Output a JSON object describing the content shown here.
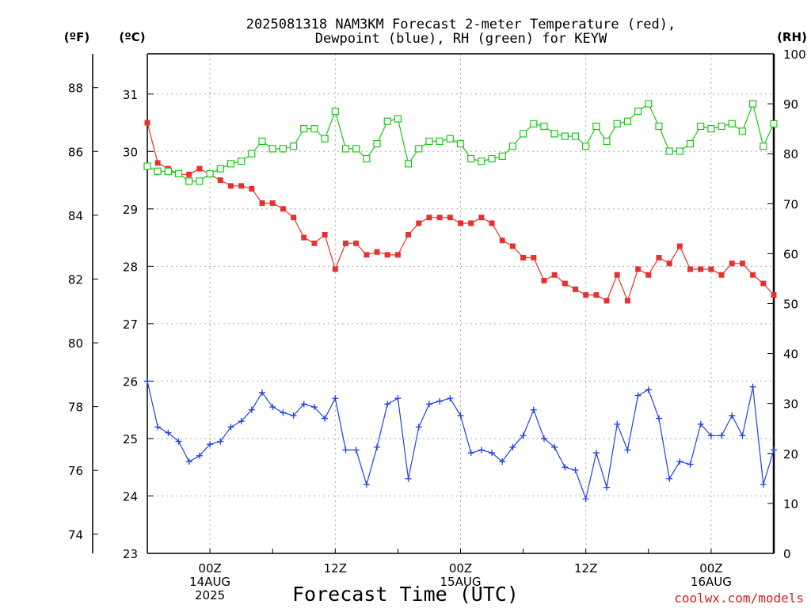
{
  "title_line1": "2025081318 NAM3KM Forecast 2-meter Temperature (red),",
  "title_line2": "Dewpoint (blue), RH (green) for KEYW",
  "units": {
    "f": "(ºF)",
    "c": "(ºC)",
    "rh": "(RH)"
  },
  "xlabel": "Forecast Time (UTC)",
  "credit": "coolwx.com/models",
  "colors": {
    "temp": "#e83030",
    "dewpoint": "#2040e8",
    "rh": "#18c818"
  },
  "chart_data": {
    "type": "line",
    "x_start_hour": -6,
    "x_step_hours": 1,
    "x_end_hour": 54,
    "xlim": [
      -6,
      54
    ],
    "x_ticks": [
      {
        "hour": 0,
        "lines": [
          "00Z",
          "14AUG",
          "2025"
        ]
      },
      {
        "hour": 12,
        "lines": [
          "12Z"
        ]
      },
      {
        "hour": 24,
        "lines": [
          "00Z",
          "15AUG"
        ]
      },
      {
        "hour": 36,
        "lines": [
          "12Z"
        ]
      },
      {
        "hour": 48,
        "lines": [
          "00Z",
          "16AUG"
        ]
      }
    ],
    "ylim_c": [
      23,
      31.7
    ],
    "yticks_c": [
      "23",
      "24",
      "25",
      "26",
      "27",
      "28",
      "29",
      "30",
      "31"
    ],
    "yticks_f": [
      "74",
      "76",
      "78",
      "80",
      "82",
      "84",
      "86",
      "88"
    ],
    "ylim_rh": [
      0,
      100
    ],
    "yticks_rh": [
      "0",
      "10",
      "20",
      "30",
      "40",
      "50",
      "60",
      "70",
      "80",
      "90",
      "100"
    ],
    "grid": true,
    "series": [
      {
        "name": "2-meter Temperature",
        "axis": "c",
        "marker": "filled-square",
        "values": [
          30.5,
          29.8,
          29.7,
          29.6,
          29.6,
          29.7,
          29.6,
          29.5,
          29.4,
          29.4,
          29.35,
          29.1,
          29.1,
          29.0,
          28.85,
          28.5,
          28.4,
          28.55,
          27.95,
          28.4,
          28.4,
          28.2,
          28.25,
          28.2,
          28.2,
          28.55,
          28.75,
          28.85,
          28.85,
          28.85,
          28.75,
          28.75,
          28.85,
          28.75,
          28.45,
          28.35,
          28.15,
          28.15,
          27.75,
          27.85,
          27.7,
          27.6,
          27.5,
          27.5,
          27.4,
          27.85,
          27.4,
          27.95,
          27.85,
          28.15,
          28.05,
          28.35,
          27.95,
          27.95,
          27.95,
          27.85,
          28.05,
          28.05,
          27.85,
          27.7,
          27.5
        ]
      },
      {
        "name": "Dewpoint",
        "axis": "c",
        "marker": "plus",
        "values": [
          26.0,
          25.2,
          25.1,
          24.95,
          24.6,
          24.7,
          24.9,
          24.95,
          25.2,
          25.3,
          25.5,
          25.8,
          25.55,
          25.45,
          25.4,
          25.6,
          25.55,
          25.35,
          25.7,
          24.8,
          24.8,
          24.2,
          24.85,
          25.6,
          25.7,
          24.3,
          25.2,
          25.6,
          25.65,
          25.7,
          25.4,
          24.75,
          24.8,
          24.75,
          24.6,
          24.85,
          25.05,
          25.5,
          25.0,
          24.85,
          24.5,
          24.45,
          23.95,
          24.75,
          24.15,
          25.25,
          24.8,
          25.75,
          25.85,
          25.35,
          24.3,
          24.6,
          24.55,
          25.25,
          25.05,
          25.05,
          25.4,
          25.05,
          25.9,
          24.2,
          24.8
        ]
      },
      {
        "name": "RH",
        "axis": "rh",
        "marker": "open-square",
        "values": [
          77.5,
          76.5,
          76.5,
          76.0,
          74.5,
          74.5,
          76.0,
          77.0,
          78.0,
          78.5,
          80.0,
          82.5,
          81.0,
          81.0,
          81.5,
          85.0,
          85.0,
          83.0,
          88.5,
          81.0,
          81.0,
          79.0,
          82.0,
          86.5,
          87.0,
          78.0,
          81.0,
          82.5,
          82.5,
          83.0,
          82.0,
          79.0,
          78.5,
          79.0,
          79.5,
          81.5,
          84.0,
          86.0,
          85.5,
          84.0,
          83.5,
          83.5,
          81.5,
          85.5,
          82.5,
          86.0,
          86.5,
          88.5,
          90.0,
          85.5,
          80.5,
          80.5,
          82.0,
          85.5,
          85.0,
          85.5,
          86.0,
          84.5,
          90.0,
          81.5,
          86.0
        ]
      }
    ]
  }
}
